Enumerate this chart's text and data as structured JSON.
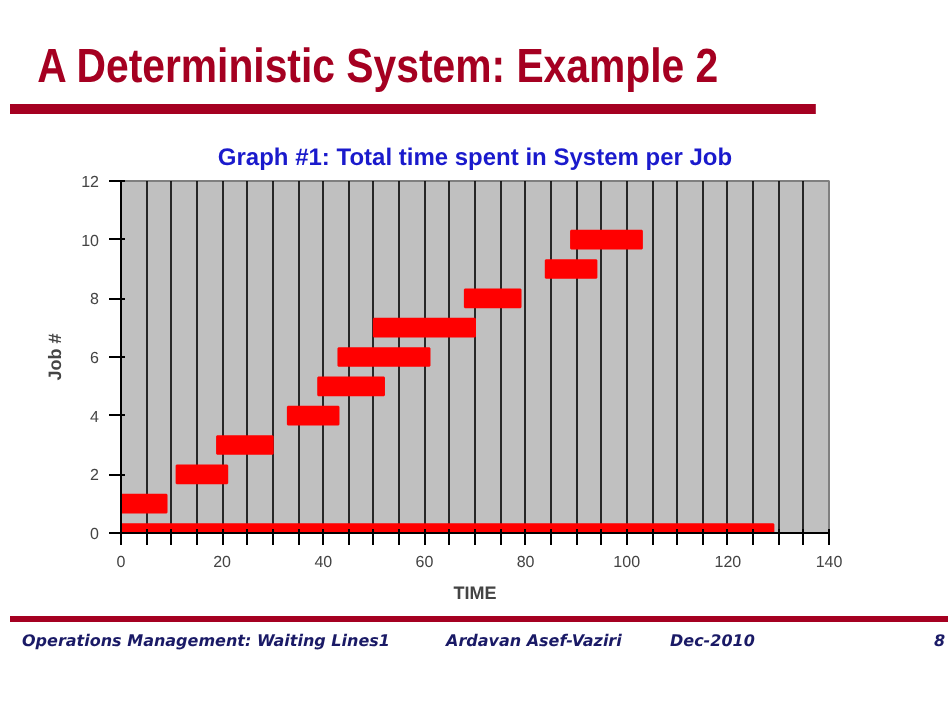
{
  "chart_data": {
    "type": "bar",
    "orientation": "horizontal",
    "title": "A Deterministic System:  Example 2",
    "subtitle": "Graph #1: Total time spent in System per Job",
    "xlabel": "TIME",
    "ylabel": "Job #",
    "x": [
      0,
      1,
      2,
      3,
      4,
      5,
      6,
      7,
      8,
      9,
      10
    ],
    "base": [
      0,
      0,
      11,
      19,
      33,
      39,
      43,
      50,
      68,
      84,
      89
    ],
    "values": [
      129,
      9,
      10,
      11,
      10,
      13,
      18,
      20,
      11,
      10,
      14
    ],
    "color": "#ff0000",
    "xlim": [
      0,
      140
    ],
    "xticks": [
      0,
      {
        "value": 5,
        "label": null
      },
      {
        "value": 10,
        "label": null
      },
      {
        "value": 15,
        "label": null
      },
      20,
      {
        "value": 25,
        "label": null
      },
      {
        "value": 30,
        "label": null
      },
      {
        "value": 35,
        "label": null
      },
      40,
      {
        "value": 45,
        "label": null
      },
      {
        "value": 50,
        "label": null
      },
      {
        "value": 55,
        "label": null
      },
      60,
      {
        "value": 65,
        "label": null
      },
      {
        "value": 70,
        "label": null
      },
      {
        "value": 75,
        "label": null
      },
      80,
      {
        "value": 85,
        "label": null
      },
      {
        "value": 90,
        "label": null
      },
      {
        "value": 95,
        "label": null
      },
      100,
      {
        "value": 105,
        "label": null
      },
      {
        "value": 110,
        "label": null
      },
      {
        "value": 115,
        "label": null
      },
      120,
      {
        "value": 125,
        "label": null
      },
      {
        "value": 130,
        "label": null
      },
      {
        "value": 135,
        "label": null
      },
      140
    ],
    "ylim": [
      0,
      12
    ],
    "yticks": [
      0,
      2,
      4,
      6,
      8,
      10,
      12
    ],
    "grid": "x",
    "annotations": [
      "Operations Management: Waiting Lines1",
      "Ardavan Asef-Vaziri",
      "Dec-2010",
      "8"
    ]
  }
}
